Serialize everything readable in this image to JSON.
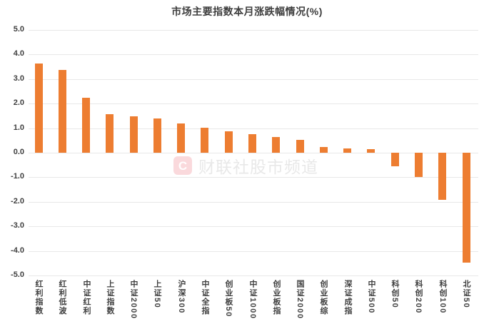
{
  "title": "市场主要指数本月涨跌幅情况(%)",
  "watermark": {
    "logo_letter": "C",
    "text": "财联社股市频道"
  },
  "colors": {
    "bar": "#ED7D31",
    "grid": "#E8E8E8",
    "axis_text": "#3F3F3F",
    "title_text": "#3E3E3E",
    "watermark_logo": "#E84350"
  },
  "chart_data": {
    "type": "bar",
    "title": "市场主要指数本月涨跌幅情况(%)",
    "categories": [
      "红利指数",
      "红利低波",
      "中证红利",
      "上证指数",
      "中证2000",
      "上证50",
      "沪深300",
      "中证全指",
      "创业板50",
      "中证1000",
      "创业板指",
      "国证2000",
      "创业板综",
      "深证成指",
      "中证500",
      "科创50",
      "科创200",
      "科创100",
      "北证50"
    ],
    "values": [
      3.62,
      3.38,
      2.23,
      1.58,
      1.49,
      1.39,
      1.18,
      1.01,
      0.88,
      0.75,
      0.64,
      0.53,
      0.22,
      0.18,
      0.15,
      -0.55,
      -0.98,
      -1.93,
      -4.49
    ],
    "xlabel": "",
    "ylabel": "",
    "ylim": [
      -5.0,
      5.0
    ],
    "ytick_step": 1.0,
    "ytick_labels": [
      "5.0",
      "4.0",
      "3.0",
      "2.0",
      "1.0",
      "0.0",
      "-1.0",
      "-2.0",
      "-3.0",
      "-4.0",
      "-5.0"
    ],
    "grid": true,
    "legend": false,
    "bar_color": "#ED7D31"
  }
}
